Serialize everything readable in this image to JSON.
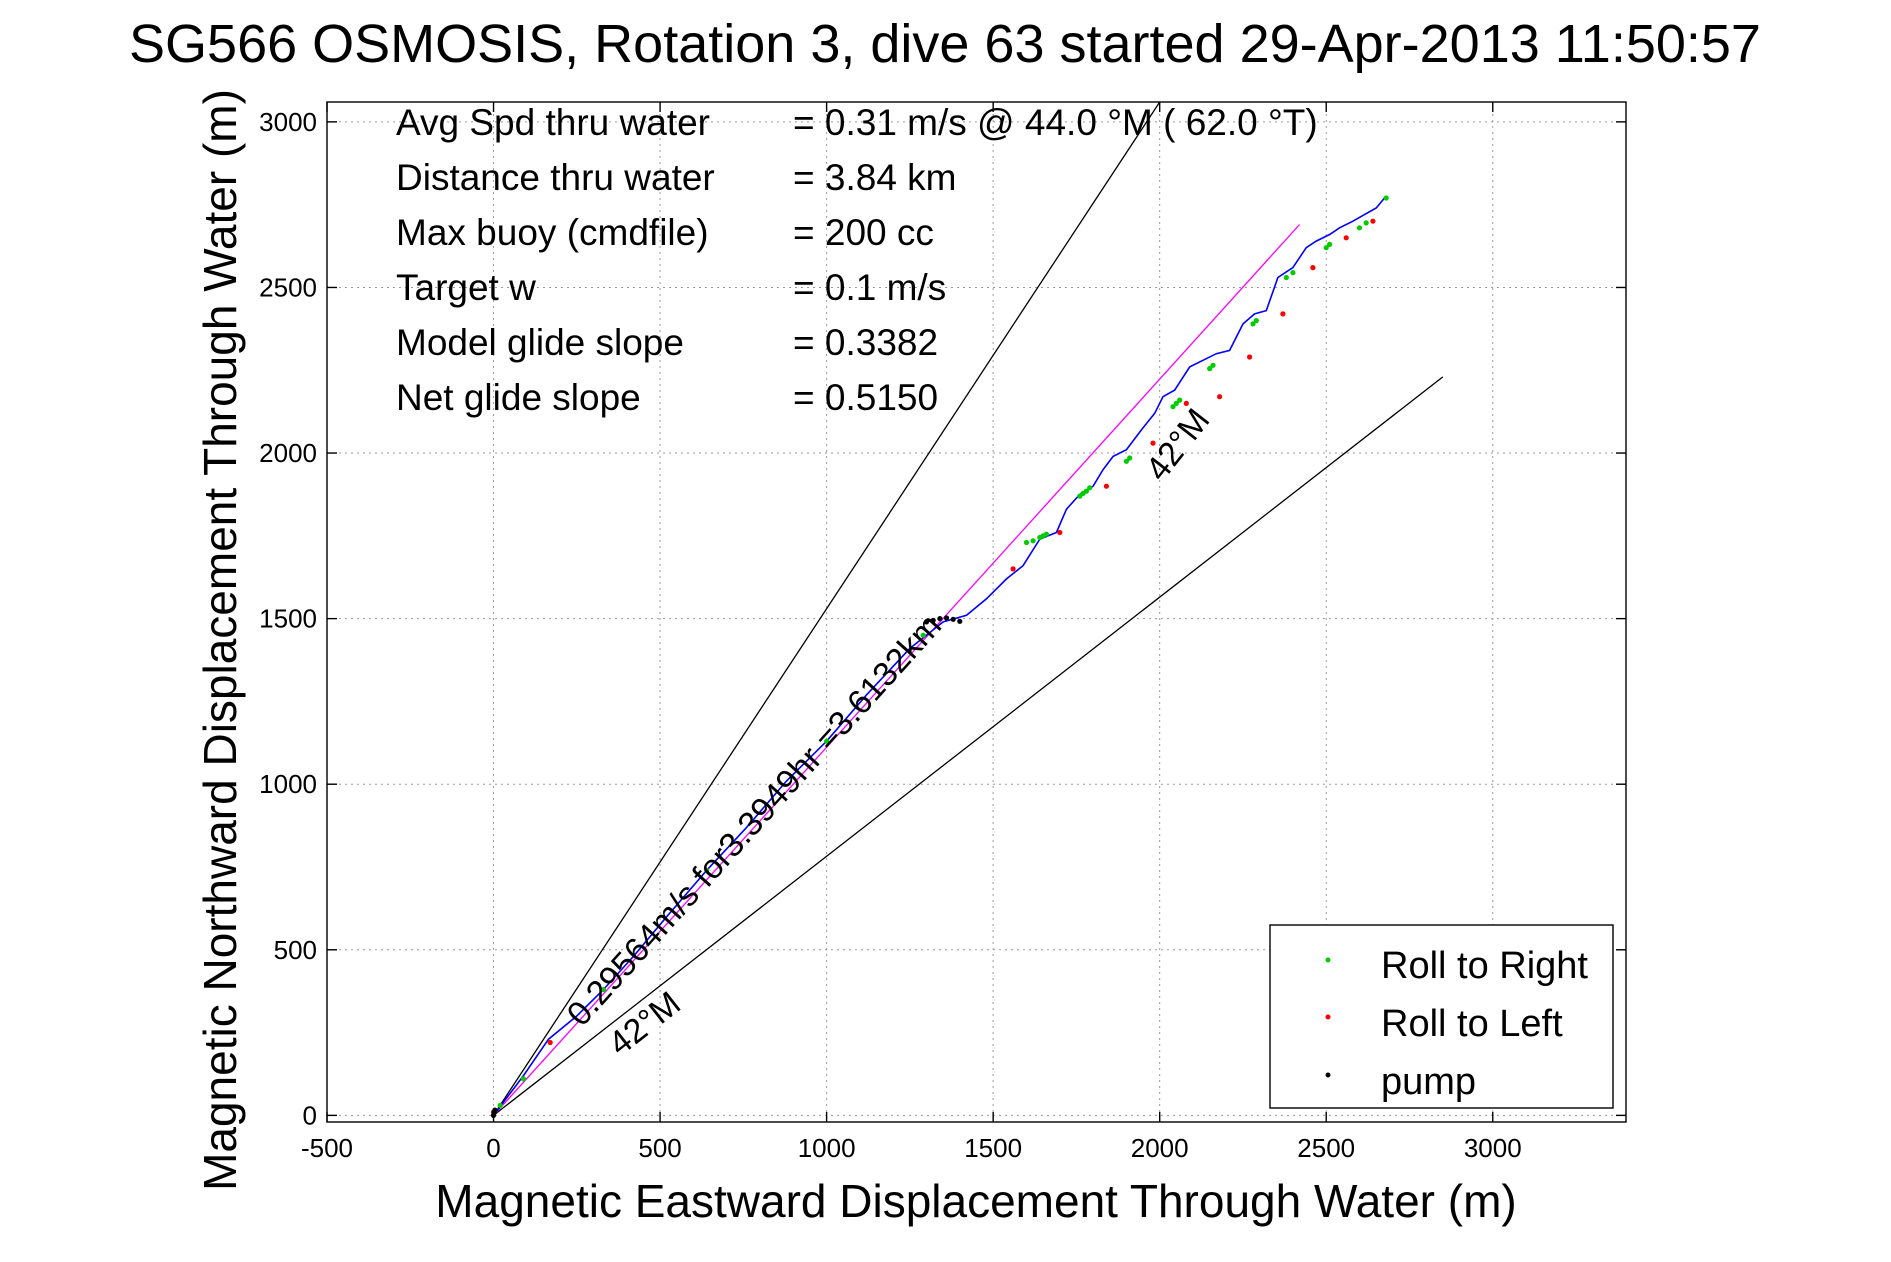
{
  "chart_data": {
    "type": "line",
    "title": "SG566 OSMOSIS, Rotation 3, dive 63 started 29-Apr-2013 11:50:57",
    "xlabel": "Magnetic Eastward Displacement Through Water (m)",
    "ylabel": "Magnetic Northward Displacement Through Water (m)",
    "xlim": [
      -500,
      3400
    ],
    "ylim": [
      -20,
      3060
    ],
    "xticks": [
      "-500",
      "0",
      "500",
      "1000",
      "1500",
      "2000",
      "2500",
      "3000"
    ],
    "yticks": [
      "0",
      "500",
      "1000",
      "1500",
      "2000",
      "2500",
      "3000"
    ],
    "grid": true,
    "legend_position": "bottom-right",
    "stats": [
      {
        "label": "Avg Spd thru water",
        "value": "=  0.31 m/s @  44.0 °M ( 62.0 °T)"
      },
      {
        "label": "Distance thru water",
        "value": "=  3.84 km"
      },
      {
        "label": "Max buoy (cmdfile)",
        "value": "= 200 cc"
      },
      {
        "label": "Target w",
        "value": "= 0.1 m/s"
      },
      {
        "label": "Model glide slope",
        "value": "= 0.3382"
      },
      {
        "label": "Net glide slope",
        "value": "= 0.5150"
      }
    ],
    "annotations": {
      "vector": "0.29564m/s for3.3949hr =3.6132km",
      "upper_heading": "42°M",
      "lower_heading": "42°M"
    },
    "series": [
      {
        "name": "track",
        "color": "#0000ff",
        "x": [
          0,
          90,
          165,
          250,
          330,
          420,
          520,
          640,
          760,
          880,
          1000,
          1120,
          1250,
          1350,
          1420,
          1480,
          1540,
          1590,
          1640,
          1690,
          1720,
          1760,
          1800,
          1830,
          1860,
          1900,
          1945,
          1985,
          2010,
          2045,
          2090,
          2130,
          2170,
          2210,
          2250,
          2285,
          2320,
          2355,
          2400,
          2440,
          2470,
          2510,
          2540,
          2580,
          2615,
          2650,
          2675
        ],
        "y": [
          0,
          120,
          230,
          300,
          380,
          480,
          600,
          740,
          870,
          1010,
          1130,
          1270,
          1410,
          1490,
          1510,
          1560,
          1620,
          1660,
          1740,
          1760,
          1830,
          1875,
          1900,
          1950,
          1990,
          2010,
          2070,
          2120,
          2170,
          2190,
          2260,
          2280,
          2300,
          2310,
          2390,
          2420,
          2430,
          2530,
          2560,
          2620,
          2640,
          2660,
          2680,
          2700,
          2720,
          2740,
          2770
        ]
      },
      {
        "name": "Roll to Right",
        "color": "#00cc00",
        "x": [
          20,
          90,
          330,
          640,
          1000,
          1290,
          1600,
          1620,
          1640,
          1650,
          1660,
          1760,
          1770,
          1780,
          1790,
          1900,
          1910,
          2040,
          2050,
          2060,
          2150,
          2160,
          2280,
          2290,
          2380,
          2400,
          2500,
          2510,
          2600,
          2620,
          2680
        ],
        "y": [
          30,
          110,
          380,
          740,
          1130,
          1450,
          1730,
          1735,
          1745,
          1750,
          1755,
          1870,
          1878,
          1885,
          1895,
          1975,
          1985,
          2140,
          2150,
          2160,
          2255,
          2265,
          2390,
          2400,
          2530,
          2545,
          2620,
          2630,
          2680,
          2695,
          2770
        ]
      },
      {
        "name": "Roll to Left",
        "color": "#ff0000",
        "x": [
          0,
          170,
          1560,
          1700,
          1840,
          1980,
          2080,
          2180,
          2270,
          2370,
          2460,
          2560,
          2640
        ],
        "y": [
          10,
          220,
          1650,
          1760,
          1900,
          2030,
          2150,
          2170,
          2290,
          2420,
          2560,
          2650,
          2700
        ]
      },
      {
        "name": "pump",
        "color": "#000000",
        "x": [
          0,
          2,
          4,
          1300,
          1320,
          1340,
          1360,
          1380,
          1400
        ],
        "y": [
          0,
          8,
          16,
          1490,
          1495,
          1500,
          1502,
          1498,
          1492
        ]
      },
      {
        "name": "vector",
        "color": "#ff00ff",
        "x": [
          0,
          2420
        ],
        "y": [
          0,
          2690
        ]
      },
      {
        "name": "upper-bound",
        "color": "#000000",
        "x": [
          0,
          2000
        ],
        "y": [
          0,
          3060
        ]
      },
      {
        "name": "lower-bound",
        "color": "#000000",
        "x": [
          0,
          2850
        ],
        "y": [
          0,
          2230
        ]
      }
    ]
  }
}
